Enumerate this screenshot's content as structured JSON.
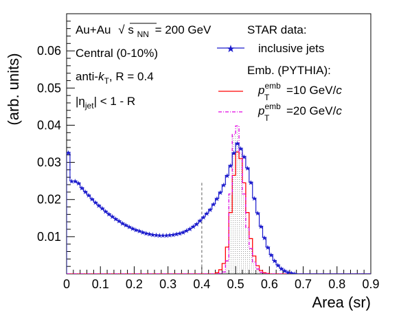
{
  "chart_data": {
    "type": "histogram",
    "xlabel": "Area (sr)",
    "ylabel": "(arb. units)",
    "xlim": [
      0,
      0.9
    ],
    "ylim": [
      0,
      0.07
    ],
    "x_ticks": [
      "0",
      "0.1",
      "0.2",
      "0.3",
      "0.4",
      "0.5",
      "0.6",
      "0.7",
      "0.8",
      "0.9"
    ],
    "y_ticks": [
      "0.01",
      "0.02",
      "0.03",
      "0.04",
      "0.05",
      "0.06"
    ],
    "annotations": {
      "system": "Au+Au",
      "sqrt_symbol": "√",
      "s_nn_base": "s",
      "s_nn_sub": "NN",
      "energy": "= 200 GeV",
      "centrality": "Central (0-10%)",
      "algo_pre": "anti-",
      "algo_k": "k",
      "algo_sub": "T",
      "algo_post": ", R = 0.4",
      "eta_pre": "|η",
      "eta_sub": "jet",
      "eta_post": "| < 1 - R",
      "cut_x": 0.4
    },
    "legend": {
      "header": "STAR data:",
      "data_entry": "inclusive jets",
      "emb_header": "Emb. (PYTHIA):",
      "p": "p",
      "sub": "T",
      "sup": "emb",
      "emb10_text": "=10 GeV/",
      "emb20_text": "=20 GeV/",
      "c": "c"
    },
    "bin_width": 0.01,
    "series": [
      {
        "name": "inclusive jets",
        "color": "#1a1acc",
        "style": "step-markers",
        "values": [
          0.0327,
          0.025,
          0.025,
          0.0245,
          0.0232,
          0.0222,
          0.0212,
          0.0202,
          0.0193,
          0.0185,
          0.0177,
          0.0169,
          0.0162,
          0.0155,
          0.0149,
          0.0143,
          0.0137,
          0.0132,
          0.0127,
          0.0123,
          0.0119,
          0.0116,
          0.0113,
          0.011,
          0.0108,
          0.0106,
          0.0105,
          0.0104,
          0.0104,
          0.0104,
          0.0105,
          0.0106,
          0.0108,
          0.011,
          0.0113,
          0.0117,
          0.0122,
          0.0128,
          0.0135,
          0.0144,
          0.0153,
          0.0163,
          0.0174,
          0.0188,
          0.0203,
          0.022,
          0.024,
          0.0265,
          0.0292,
          0.0326,
          0.0352,
          0.0338,
          0.0316,
          0.0285,
          0.0247,
          0.0204,
          0.0164,
          0.0128,
          0.0098,
          0.0072,
          0.0052,
          0.0036,
          0.0024,
          0.0015,
          0.0009,
          0.0005,
          0.0003,
          0.0001,
          0,
          0,
          0,
          0,
          0,
          0,
          0,
          0,
          0,
          0,
          0,
          0,
          0,
          0,
          0,
          0,
          0,
          0,
          0,
          0,
          0,
          0
        ]
      },
      {
        "name": "pT emb = 10 GeV/c",
        "color": "#ff0000",
        "style": "step",
        "values": [
          0,
          0,
          0,
          0,
          0,
          0,
          0,
          0,
          0,
          0,
          0,
          0,
          0,
          0,
          0,
          0,
          0,
          0,
          0,
          0,
          0,
          0,
          0,
          0,
          0,
          0,
          0,
          0,
          0,
          0,
          0,
          0,
          0,
          0,
          0,
          0,
          0,
          0,
          0,
          0,
          0,
          0,
          0,
          0,
          0.0003,
          0.0011,
          0.0028,
          0.0072,
          0.0165,
          0.0265,
          0.0328,
          0.031,
          0.0245,
          0.0165,
          0.0095,
          0.0048,
          0.0022,
          0.0009,
          0.0003,
          0.0001,
          0,
          0,
          0,
          0,
          0,
          0,
          0,
          0,
          0,
          0,
          0,
          0,
          0,
          0,
          0,
          0,
          0,
          0,
          0,
          0,
          0,
          0,
          0,
          0,
          0,
          0,
          0,
          0,
          0,
          0
        ]
      },
      {
        "name": "pT emb = 20 GeV/c",
        "color": "#e000e0",
        "style": "step-dashdot-fill",
        "values": [
          0,
          0,
          0,
          0,
          0,
          0,
          0,
          0,
          0,
          0,
          0,
          0,
          0,
          0,
          0,
          0,
          0,
          0,
          0,
          0,
          0,
          0,
          0,
          0,
          0,
          0,
          0,
          0,
          0,
          0,
          0,
          0,
          0,
          0,
          0,
          0,
          0,
          0,
          0,
          0,
          0,
          0,
          0,
          0,
          0,
          0.0001,
          0.0005,
          0.0035,
          0.0215,
          0.0375,
          0.0398,
          0.0325,
          0.0215,
          0.0125,
          0.0068,
          0.0032,
          0.0013,
          0.0004,
          0.0001,
          0,
          0,
          0,
          0,
          0,
          0,
          0,
          0,
          0,
          0,
          0,
          0,
          0,
          0,
          0,
          0,
          0,
          0,
          0,
          0,
          0,
          0,
          0,
          0,
          0,
          0,
          0,
          0,
          0,
          0,
          0
        ]
      }
    ]
  }
}
